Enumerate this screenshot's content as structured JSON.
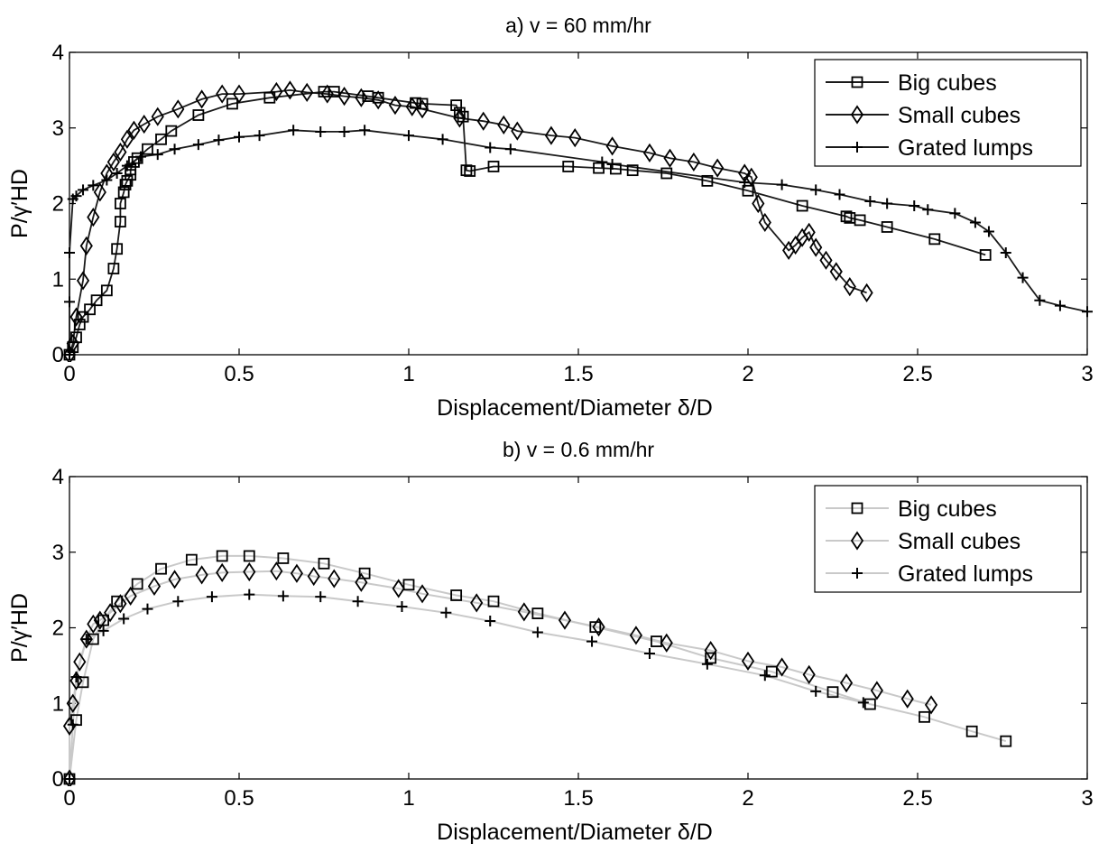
{
  "chart_data": [
    {
      "type": "line",
      "title": "a) v = 60 mm/hr",
      "xlabel": "Displacement/Diameter δ/D",
      "ylabel": "P/γ′HD",
      "xlim": [
        0,
        3
      ],
      "ylim": [
        0,
        4
      ],
      "xticks": [
        "0",
        "0.5",
        "1",
        "1.5",
        "2",
        "2.5",
        "3"
      ],
      "yticks": [
        "0",
        "1",
        "2",
        "3",
        "4"
      ],
      "grid": false,
      "legend_position": "top-right",
      "line_color": "#1a1a1a",
      "series": [
        {
          "name": "Big cubes",
          "marker": "square",
          "x": [
            0.0,
            0.01,
            0.02,
            0.03,
            0.04,
            0.06,
            0.08,
            0.11,
            0.13,
            0.14,
            0.15,
            0.15,
            0.16,
            0.165,
            0.17,
            0.18,
            0.18,
            0.19,
            0.2,
            0.23,
            0.27,
            0.3,
            0.38,
            0.48,
            0.59,
            0.75,
            0.78,
            0.88,
            0.91,
            1.02,
            1.04,
            1.14,
            1.15,
            1.16,
            1.17,
            1.18,
            1.25,
            1.47,
            1.56,
            1.61,
            1.66,
            1.76,
            1.88,
            2.0,
            2.16,
            2.29,
            2.3,
            2.33,
            2.41,
            2.55,
            2.7
          ],
          "y": [
            0.0,
            0.1,
            0.23,
            0.4,
            0.5,
            0.6,
            0.72,
            0.85,
            1.14,
            1.4,
            1.76,
            2.0,
            2.15,
            2.25,
            2.3,
            2.38,
            2.45,
            2.55,
            2.6,
            2.72,
            2.85,
            2.96,
            3.17,
            3.32,
            3.4,
            3.48,
            3.48,
            3.42,
            3.4,
            3.33,
            3.32,
            3.3,
            3.2,
            3.15,
            2.44,
            2.43,
            2.49,
            2.49,
            2.47,
            2.46,
            2.44,
            2.4,
            2.3,
            2.17,
            1.97,
            1.83,
            1.81,
            1.78,
            1.69,
            1.53,
            1.32
          ]
        },
        {
          "name": "Small cubes",
          "marker": "diamond",
          "x": [
            0.0,
            0.01,
            0.02,
            0.04,
            0.05,
            0.07,
            0.09,
            0.11,
            0.13,
            0.15,
            0.17,
            0.19,
            0.22,
            0.26,
            0.32,
            0.39,
            0.45,
            0.5,
            0.61,
            0.65,
            0.7,
            0.76,
            0.81,
            0.86,
            0.91,
            0.96,
            1.01,
            1.04,
            1.15,
            1.22,
            1.28,
            1.32,
            1.42,
            1.49,
            1.6,
            1.71,
            1.77,
            1.84,
            1.91,
            1.99,
            2.01,
            2.03,
            2.05,
            2.12,
            2.14,
            2.16,
            2.18,
            2.2,
            2.23,
            2.26,
            2.3,
            2.35
          ],
          "y": [
            0.0,
            0.15,
            0.5,
            0.98,
            1.44,
            1.82,
            2.15,
            2.4,
            2.55,
            2.68,
            2.85,
            2.97,
            3.05,
            3.15,
            3.25,
            3.38,
            3.45,
            3.45,
            3.48,
            3.5,
            3.47,
            3.45,
            3.42,
            3.4,
            3.37,
            3.3,
            3.28,
            3.25,
            3.13,
            3.09,
            3.04,
            2.96,
            2.9,
            2.87,
            2.76,
            2.67,
            2.6,
            2.55,
            2.47,
            2.4,
            2.35,
            2.0,
            1.75,
            1.38,
            1.45,
            1.55,
            1.62,
            1.42,
            1.25,
            1.1,
            0.9,
            0.82
          ]
        },
        {
          "name": "Grated lumps",
          "marker": "plus",
          "x": [
            0.0,
            0.0,
            0.0,
            0.01,
            0.02,
            0.04,
            0.07,
            0.11,
            0.14,
            0.17,
            0.21,
            0.26,
            0.31,
            0.38,
            0.44,
            0.5,
            0.56,
            0.66,
            0.74,
            0.81,
            0.87,
            1.0,
            1.1,
            1.24,
            1.3,
            1.57,
            1.6,
            1.99,
            2.1,
            2.2,
            2.27,
            2.36,
            2.41,
            2.49,
            2.53,
            2.61,
            2.67,
            2.71,
            2.76,
            2.81,
            2.86,
            2.92,
            3.0
          ],
          "y": [
            0.0,
            0.7,
            1.35,
            2.06,
            2.1,
            2.18,
            2.24,
            2.31,
            2.4,
            2.5,
            2.62,
            2.65,
            2.72,
            2.78,
            2.84,
            2.88,
            2.9,
            2.97,
            2.95,
            2.95,
            2.97,
            2.9,
            2.85,
            2.74,
            2.72,
            2.55,
            2.52,
            2.28,
            2.25,
            2.18,
            2.12,
            2.03,
            2.0,
            1.97,
            1.92,
            1.87,
            1.75,
            1.63,
            1.35,
            1.02,
            0.72,
            0.65,
            0.57
          ]
        }
      ]
    },
    {
      "type": "line",
      "title": "b) v = 0.6 mm/hr",
      "xlabel": "Displacement/Diameter δ/D",
      "ylabel": "P/γ′HD",
      "xlim": [
        0,
        3
      ],
      "ylim": [
        0,
        4
      ],
      "xticks": [
        "0",
        "0.5",
        "1",
        "1.5",
        "2",
        "2.5",
        "3"
      ],
      "yticks": [
        "0",
        "1",
        "2",
        "3",
        "4"
      ],
      "grid": false,
      "legend_position": "top-right",
      "line_color": "#c9c9c9",
      "series": [
        {
          "name": "Big cubes",
          "marker": "square",
          "x": [
            0.0,
            0.02,
            0.04,
            0.07,
            0.1,
            0.14,
            0.2,
            0.27,
            0.36,
            0.45,
            0.53,
            0.63,
            0.75,
            0.87,
            1.0,
            1.14,
            1.25,
            1.38,
            1.55,
            1.73,
            1.89,
            2.07,
            2.25,
            2.36,
            2.52,
            2.66,
            2.76
          ],
          "y": [
            0.0,
            0.78,
            1.28,
            1.85,
            2.1,
            2.35,
            2.58,
            2.78,
            2.9,
            2.95,
            2.95,
            2.92,
            2.85,
            2.72,
            2.57,
            2.43,
            2.35,
            2.19,
            2.01,
            1.82,
            1.6,
            1.42,
            1.15,
            0.99,
            0.82,
            0.63,
            0.5
          ]
        },
        {
          "name": "Small cubes",
          "marker": "diamond",
          "x": [
            0.0,
            0.0,
            0.01,
            0.02,
            0.03,
            0.05,
            0.07,
            0.09,
            0.12,
            0.15,
            0.18,
            0.25,
            0.31,
            0.39,
            0.45,
            0.53,
            0.61,
            0.67,
            0.72,
            0.78,
            0.86,
            0.97,
            1.04,
            1.2,
            1.34,
            1.46,
            1.56,
            1.67,
            1.76,
            1.89,
            2.0,
            2.1,
            2.18,
            2.29,
            2.38,
            2.47,
            2.54
          ],
          "y": [
            0.0,
            0.7,
            1.0,
            1.3,
            1.55,
            1.85,
            2.05,
            2.1,
            2.2,
            2.32,
            2.42,
            2.55,
            2.64,
            2.7,
            2.73,
            2.74,
            2.75,
            2.72,
            2.68,
            2.65,
            2.6,
            2.52,
            2.45,
            2.33,
            2.21,
            2.1,
            2.01,
            1.9,
            1.8,
            1.7,
            1.56,
            1.48,
            1.38,
            1.27,
            1.17,
            1.06,
            0.98
          ]
        },
        {
          "name": "Grated lumps",
          "marker": "plus",
          "x": [
            0.0,
            0.01,
            0.02,
            0.05,
            0.1,
            0.16,
            0.23,
            0.32,
            0.42,
            0.53,
            0.63,
            0.74,
            0.85,
            0.98,
            1.11,
            1.24,
            1.38,
            1.54,
            1.71,
            1.88,
            2.05,
            2.2,
            2.34
          ],
          "y": [
            0.0,
            0.72,
            1.35,
            1.85,
            1.96,
            2.12,
            2.25,
            2.35,
            2.41,
            2.44,
            2.42,
            2.41,
            2.35,
            2.28,
            2.2,
            2.09,
            1.94,
            1.82,
            1.66,
            1.52,
            1.37,
            1.16,
            1.01
          ]
        }
      ]
    }
  ]
}
